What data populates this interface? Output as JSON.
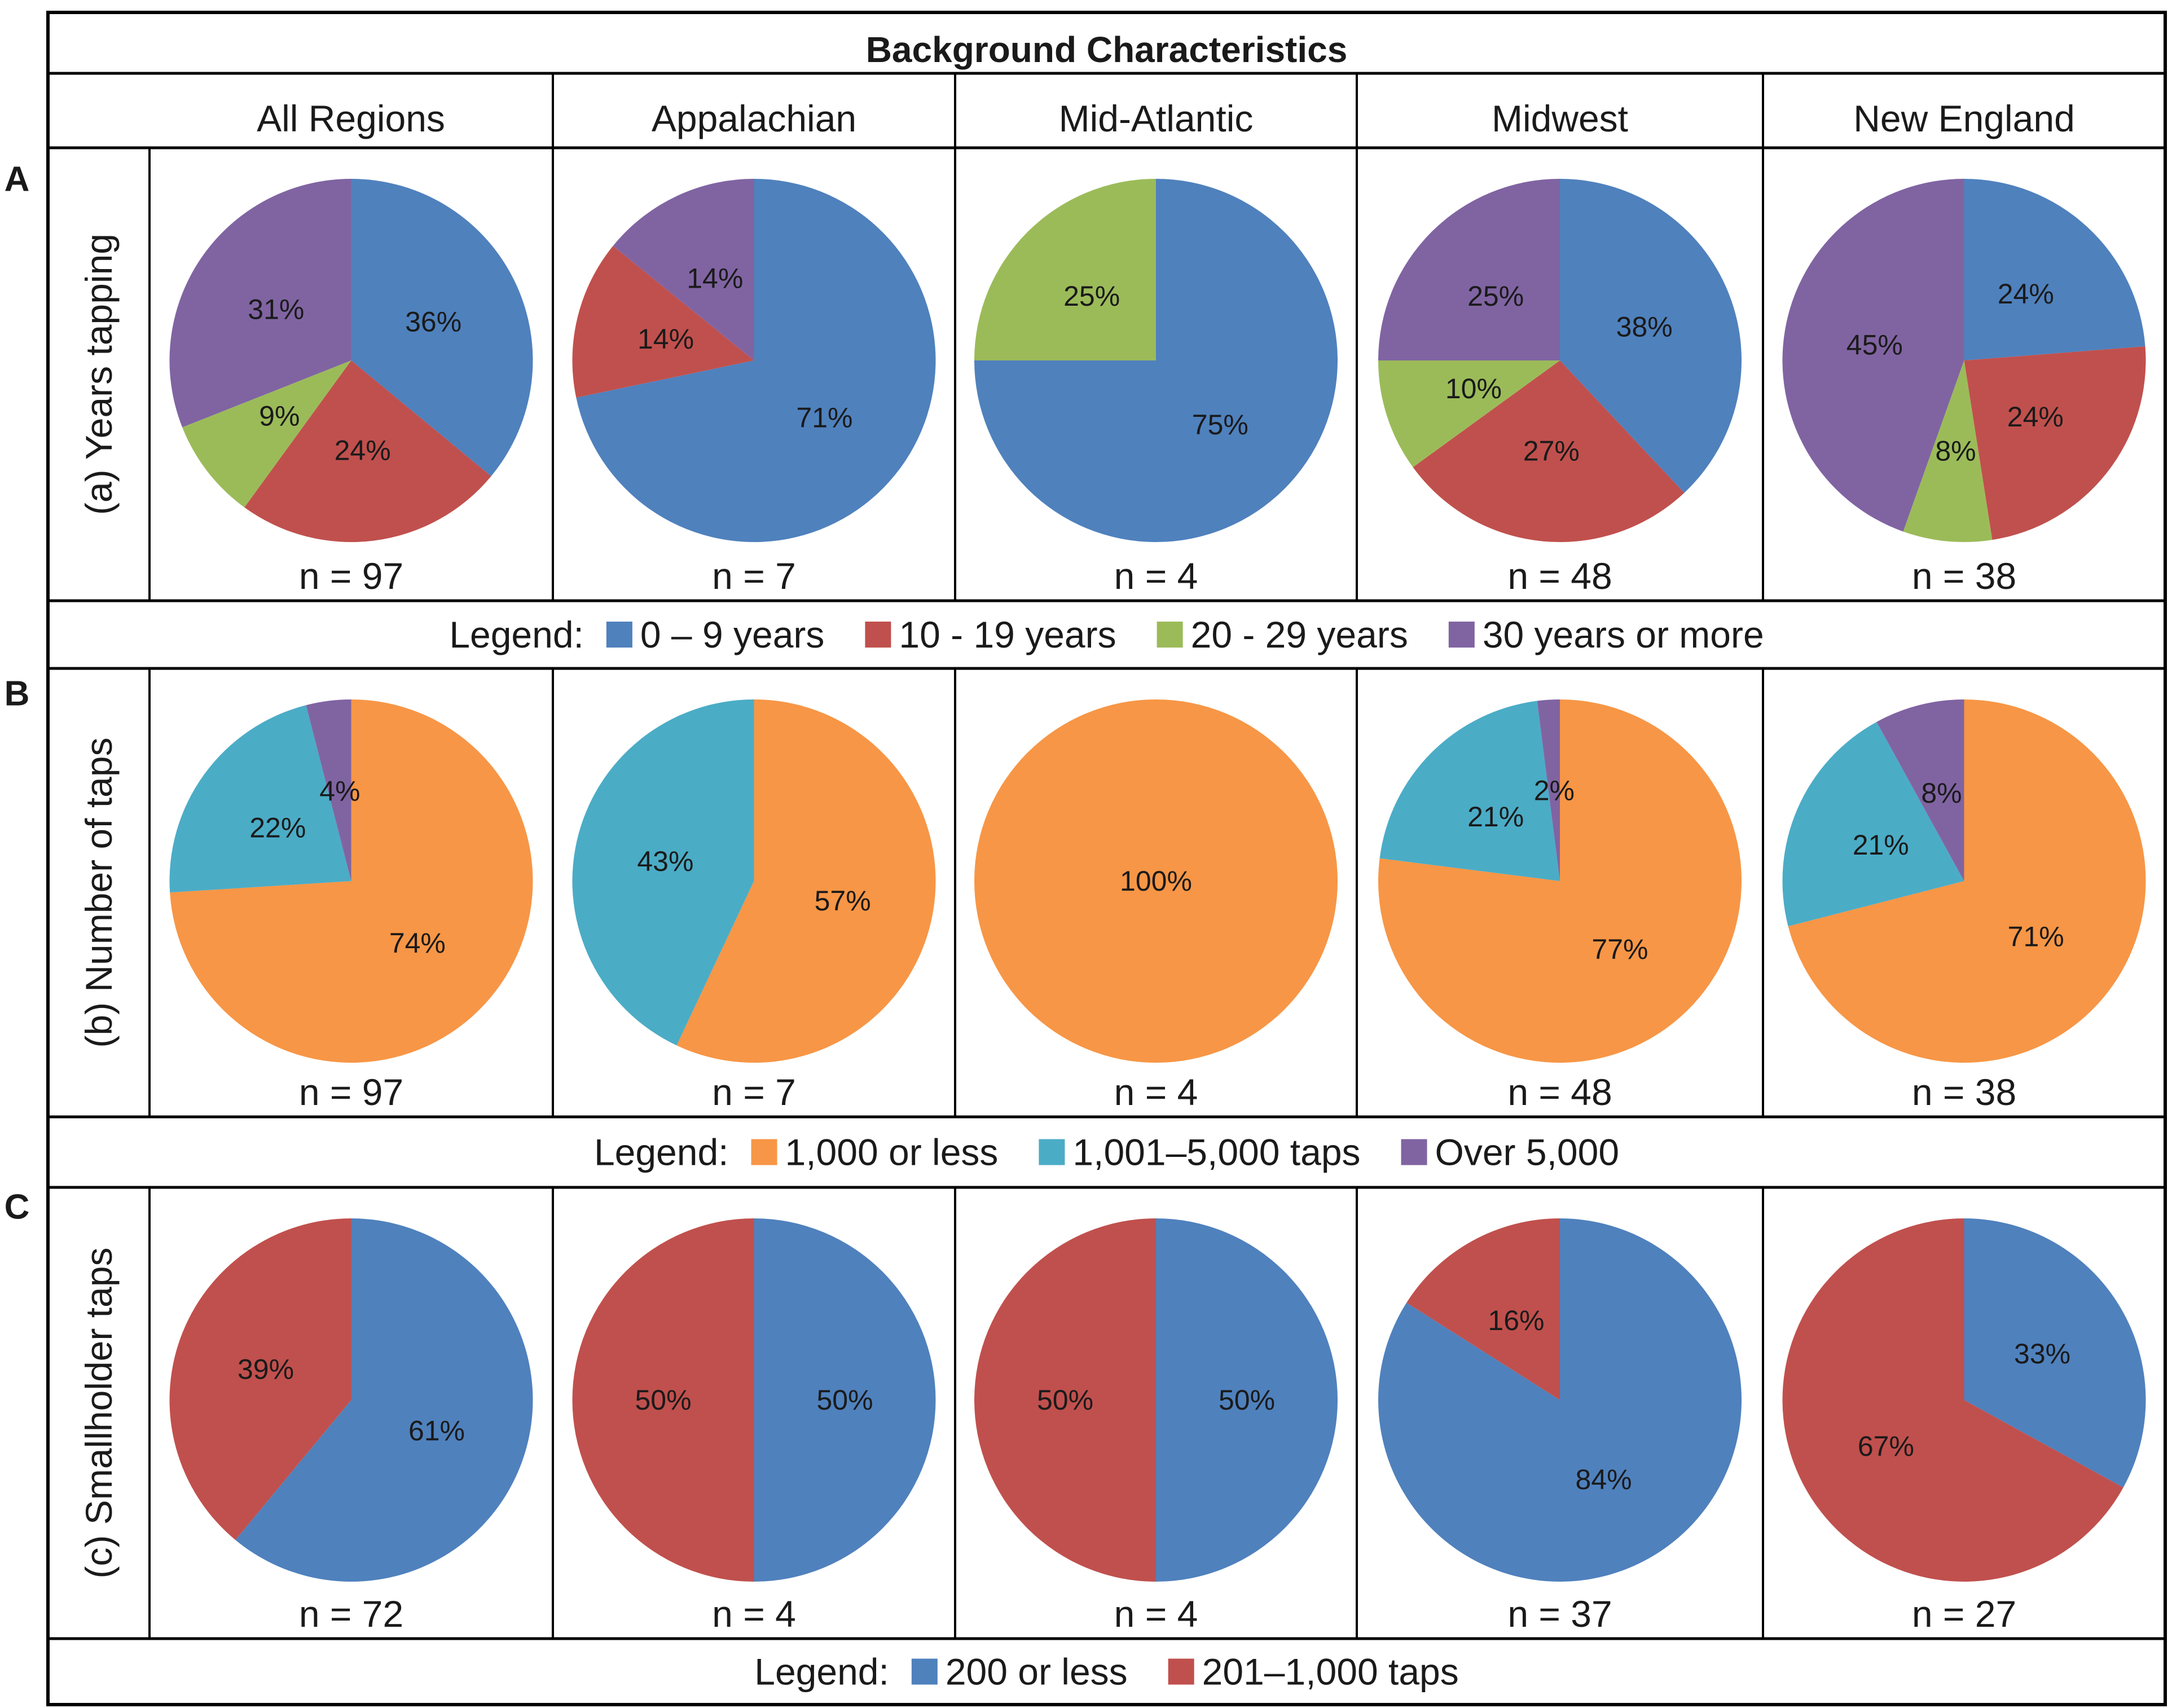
{
  "title": "Background Characteristics",
  "regions": [
    "All Regions",
    "Appalachian",
    "Mid-Atlantic",
    "Midwest",
    "New England"
  ],
  "panel_letters": [
    "A",
    "B",
    "C"
  ],
  "legend_prefix": "Legend:",
  "colors": {
    "blue": "#4F81BD",
    "red": "#C0504D",
    "green": "#9BBB59",
    "purple": "#8064A2",
    "orange": "#F79646",
    "teal": "#4BACC6"
  },
  "chart_data": [
    {
      "type": "pie",
      "title": "(a) Years tapping",
      "legend": [
        {
          "label": "0 – 9 years",
          "color": "#4F81BD"
        },
        {
          "label": "10 - 19 years",
          "color": "#C0504D"
        },
        {
          "label": "20 - 29 years",
          "color": "#9BBB59"
        },
        {
          "label": "30 years or more",
          "color": "#8064A2"
        }
      ],
      "pies": [
        {
          "region": "All Regions",
          "n": "n = 97",
          "values": [
            36,
            24,
            9,
            31
          ],
          "labels": [
            "36%",
            "24%",
            "9%",
            "31%"
          ]
        },
        {
          "region": "Appalachian",
          "n": "n = 7",
          "values": [
            71,
            14,
            0,
            14
          ],
          "labels": [
            "71%",
            "14%",
            "",
            "14%"
          ]
        },
        {
          "region": "Mid-Atlantic",
          "n": "n = 4",
          "values": [
            75,
            0,
            25,
            0
          ],
          "labels": [
            "75%",
            "",
            "25%",
            ""
          ]
        },
        {
          "region": "Midwest",
          "n": "n = 48",
          "values": [
            38,
            27,
            10,
            25
          ],
          "labels": [
            "38%",
            "27%",
            "10%",
            "25%"
          ]
        },
        {
          "region": "New England",
          "n": "n = 38",
          "values": [
            24,
            24,
            8,
            45
          ],
          "labels": [
            "24%",
            "24%",
            "8%",
            "45%"
          ]
        }
      ]
    },
    {
      "type": "pie",
      "title": "(b) Number of taps",
      "legend": [
        {
          "label": "1,000 or less",
          "color": "#F79646"
        },
        {
          "label": "1,001–5,000 taps",
          "color": "#4BACC6"
        },
        {
          "label": "Over 5,000",
          "color": "#8064A2"
        }
      ],
      "pies": [
        {
          "region": "All Regions",
          "n": "n = 97",
          "values": [
            74,
            22,
            4
          ],
          "labels": [
            "74%",
            "22%",
            "4%"
          ]
        },
        {
          "region": "Appalachian",
          "n": "n = 7",
          "values": [
            57,
            43,
            0
          ],
          "labels": [
            "57%",
            "43%",
            ""
          ]
        },
        {
          "region": "Mid-Atlantic",
          "n": "n = 4",
          "values": [
            100,
            0,
            0
          ],
          "labels": [
            "100%",
            "",
            ""
          ]
        },
        {
          "region": "Midwest",
          "n": "n = 48",
          "values": [
            77,
            21,
            2
          ],
          "labels": [
            "77%",
            "21%",
            "2%"
          ]
        },
        {
          "region": "New England",
          "n": "n = 38",
          "values": [
            71,
            21,
            8
          ],
          "labels": [
            "71%",
            "21%",
            "8%"
          ]
        }
      ]
    },
    {
      "type": "pie",
      "title": "(c) Smallholder taps",
      "legend": [
        {
          "label": "200 or less",
          "color": "#4F81BD"
        },
        {
          "label": "201–1,000 taps",
          "color": "#C0504D"
        }
      ],
      "pies": [
        {
          "region": "All Regions",
          "n": "n = 72",
          "values": [
            61,
            39
          ],
          "labels": [
            "61%",
            "39%"
          ]
        },
        {
          "region": "Appalachian",
          "n": "n = 4",
          "values": [
            50,
            50
          ],
          "labels": [
            "50%",
            "50%"
          ]
        },
        {
          "region": "Mid-Atlantic",
          "n": "n = 4",
          "values": [
            50,
            50
          ],
          "labels": [
            "50%",
            "50%"
          ]
        },
        {
          "region": "Midwest",
          "n": "n = 37",
          "values": [
            84,
            16
          ],
          "labels": [
            "84%",
            "16%"
          ]
        },
        {
          "region": "New England",
          "n": "n = 27",
          "values": [
            33,
            67
          ],
          "labels": [
            "33%",
            "67%"
          ]
        }
      ]
    }
  ]
}
